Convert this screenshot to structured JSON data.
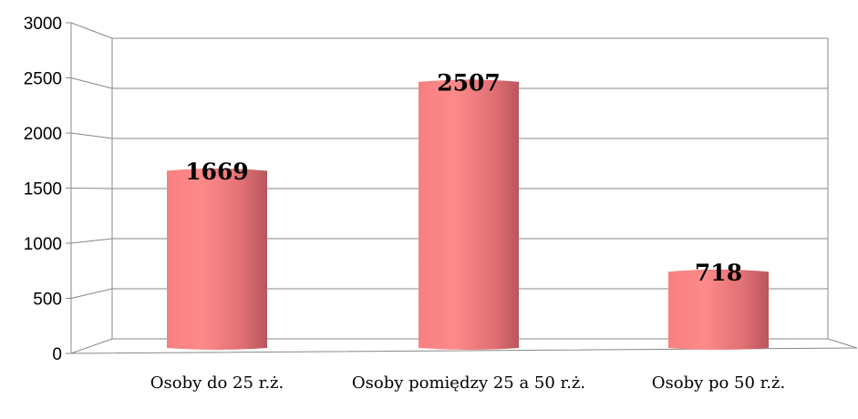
{
  "chart_data": {
    "type": "bar3d",
    "categories": [
      "Osoby do 25 r.ż.",
      "Osoby pomiędzy 25 a 50 r.ż.",
      "Osoby po 50 r.ż."
    ],
    "values": [
      1669,
      2507,
      718
    ],
    "color": "#f07a7c",
    "ylim": [
      0,
      3000
    ],
    "yticks": [
      0,
      500,
      1000,
      1500,
      2000,
      2500,
      3000
    ],
    "grid": true
  }
}
